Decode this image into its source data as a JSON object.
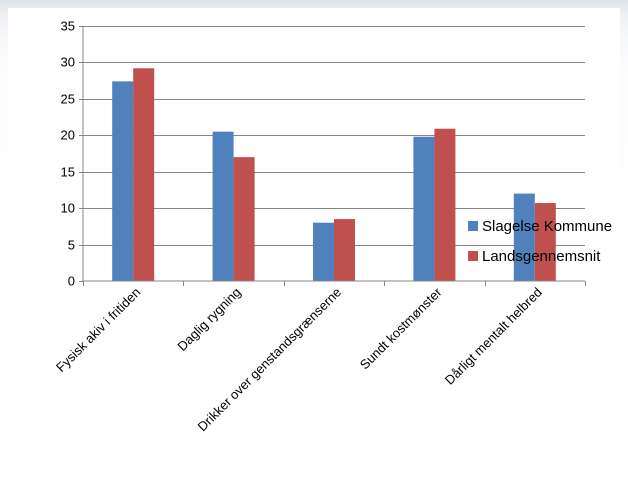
{
  "chart_data": {
    "type": "bar",
    "categories": [
      "Fysisk akiv i fritiden",
      "Daglig rygning",
      "Drikker over genstandsgrænserne",
      "Sundt kostmønster",
      "Dårligt mentalt helbred"
    ],
    "series": [
      {
        "name": "Slagelse Kommune",
        "color": "#4f81bd",
        "values": [
          27.4,
          20.5,
          8.0,
          19.8,
          12.0
        ]
      },
      {
        "name": "Landsgennemsnit",
        "color": "#c0504d",
        "values": [
          29.2,
          17.0,
          8.5,
          20.9,
          10.7
        ]
      }
    ],
    "ylim": [
      0,
      35
    ],
    "yticks": [
      0,
      5,
      10,
      15,
      20,
      25,
      30,
      35
    ],
    "grid": true,
    "legend": "right"
  }
}
